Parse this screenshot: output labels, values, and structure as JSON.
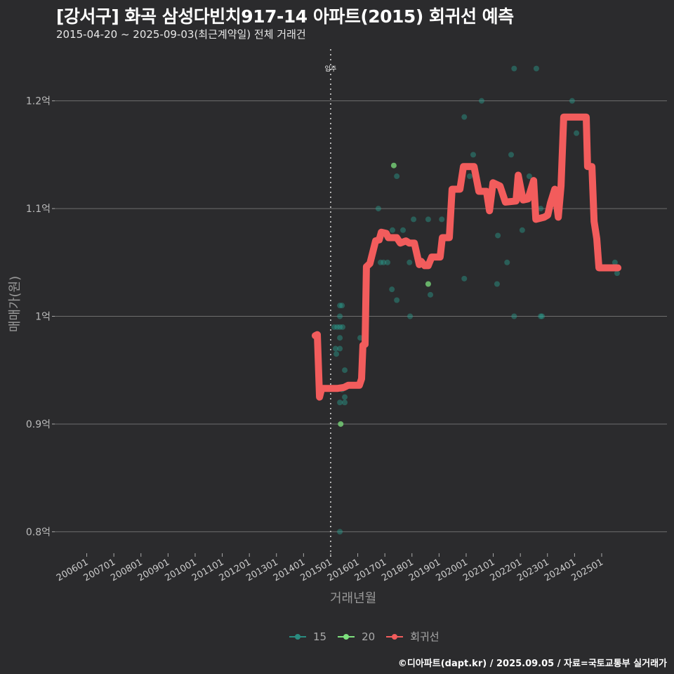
{
  "title": "[강서구] 화곡 삼성다빈치917-14 아파트(2015) 회귀선 예측",
  "subtitle": "2015-04-20 ~ 2025-09-03(최근계약일) 전체 거래건",
  "caption": "©디아파트(dapt.kr) / 2025.09.05 / 자료=국토교통부 실거래가",
  "chart_data": {
    "type": "scatter",
    "xlabel": "거래년월",
    "ylabel": "매매가(원)",
    "xlim": [
      2004.82,
      2027.41
    ],
    "ylim": [
      0.782,
      1.248
    ],
    "grid": "horizontal",
    "legend_position": "bottom",
    "x_ticks": [
      {
        "value": 2006,
        "label": "200601"
      },
      {
        "value": 2007,
        "label": "200701"
      },
      {
        "value": 2008,
        "label": "200801"
      },
      {
        "value": 2009,
        "label": "200901"
      },
      {
        "value": 2010,
        "label": "201001"
      },
      {
        "value": 2011,
        "label": "201101"
      },
      {
        "value": 2012,
        "label": "201201"
      },
      {
        "value": 2013,
        "label": "201301"
      },
      {
        "value": 2014,
        "label": "201401"
      },
      {
        "value": 2015,
        "label": "201501"
      },
      {
        "value": 2016,
        "label": "201601"
      },
      {
        "value": 2017,
        "label": "201701"
      },
      {
        "value": 2018,
        "label": "201801"
      },
      {
        "value": 2019,
        "label": "201901"
      },
      {
        "value": 2020,
        "label": "202001"
      },
      {
        "value": 2021,
        "label": "202101"
      },
      {
        "value": 2022,
        "label": "202201"
      },
      {
        "value": 2023,
        "label": "202301"
      },
      {
        "value": 2024,
        "label": "202401"
      },
      {
        "value": 2025,
        "label": "202501"
      }
    ],
    "y_ticks": [
      {
        "value": 1.2,
        "label": "1.2억"
      },
      {
        "value": 1.1,
        "label": "1.1억"
      },
      {
        "value": 1.0,
        "label": "1억"
      },
      {
        "value": 0.9,
        "label": "0.9억"
      },
      {
        "value": 0.8,
        "label": "0.8억"
      }
    ],
    "annotation": {
      "x": 2015.0,
      "label": "입주"
    },
    "legend": [
      {
        "name": "15",
        "color": "#2a8c80"
      },
      {
        "name": "20",
        "color": "#7de07d"
      },
      {
        "name": "회귀선",
        "color": "#f25c5c"
      }
    ],
    "series": [
      {
        "name": "15",
        "color": "#2a9d8f",
        "points": [
          [
            2015.34,
            1.01
          ],
          [
            2015.42,
            1.01
          ],
          [
            2015.34,
            1.0
          ],
          [
            2015.13,
            0.99
          ],
          [
            2015.24,
            0.99
          ],
          [
            2015.34,
            0.99
          ],
          [
            2015.44,
            0.99
          ],
          [
            2015.34,
            0.98
          ],
          [
            2015.18,
            0.97
          ],
          [
            2015.34,
            0.97
          ],
          [
            2015.21,
            0.965
          ],
          [
            2015.52,
            0.95
          ],
          [
            2015.42,
            0.932
          ],
          [
            2015.52,
            0.925
          ],
          [
            2015.34,
            0.92
          ],
          [
            2015.52,
            0.92
          ],
          [
            2015.34,
            0.8
          ],
          [
            2016.09,
            0.98
          ],
          [
            2016.76,
            1.1
          ],
          [
            2017.44,
            1.13
          ],
          [
            2017.28,
            1.08
          ],
          [
            2016.84,
            1.05
          ],
          [
            2016.95,
            1.05
          ],
          [
            2017.1,
            1.05
          ],
          [
            2017.44,
            1.015
          ],
          [
            2017.26,
            1.025
          ],
          [
            2017.67,
            1.08
          ],
          [
            2018.06,
            1.09
          ],
          [
            2018.6,
            1.09
          ],
          [
            2017.93,
            1.0
          ],
          [
            2018.68,
            1.02
          ],
          [
            2019.1,
            1.09
          ],
          [
            2019.93,
            1.035
          ],
          [
            2019.93,
            1.185
          ],
          [
            2020.57,
            1.2
          ],
          [
            2020.26,
            1.15
          ],
          [
            2020.13,
            1.13
          ],
          [
            2021.77,
            1.23
          ],
          [
            2022.59,
            1.23
          ],
          [
            2023.91,
            1.2
          ],
          [
            2024.07,
            1.17
          ],
          [
            2021.66,
            1.15
          ],
          [
            2022.33,
            1.13
          ],
          [
            2021.17,
            1.075
          ],
          [
            2022.07,
            1.08
          ],
          [
            2021.14,
            1.03
          ],
          [
            2021.51,
            1.05
          ],
          [
            2021.77,
            1.0
          ],
          [
            2022.75,
            1.0
          ],
          [
            2022.8,
            1.0
          ],
          [
            2025.49,
            1.05
          ],
          [
            2025.57,
            1.04
          ],
          [
            2022.75,
            1.1
          ],
          [
            2017.91,
            1.05
          ]
        ]
      },
      {
        "name": "20",
        "color": "#7de07d",
        "points": [
          [
            2015.37,
            0.9
          ],
          [
            2017.33,
            1.14
          ],
          [
            2018.6,
            1.03
          ]
        ]
      },
      {
        "name": "회귀선",
        "color": "#f25c5c",
        "type": "line",
        "points": [
          [
            2014.43,
            0.982
          ],
          [
            2014.51,
            0.983
          ],
          [
            2014.59,
            0.925
          ],
          [
            2014.67,
            0.933
          ],
          [
            2015.24,
            0.933
          ],
          [
            2015.49,
            0.934
          ],
          [
            2015.65,
            0.936
          ],
          [
            2016.06,
            0.936
          ],
          [
            2016.14,
            0.942
          ],
          [
            2016.19,
            0.973
          ],
          [
            2016.27,
            0.974
          ],
          [
            2016.32,
            1.046
          ],
          [
            2016.45,
            1.049
          ],
          [
            2016.66,
            1.07
          ],
          [
            2016.79,
            1.071
          ],
          [
            2016.87,
            1.078
          ],
          [
            2017.05,
            1.077
          ],
          [
            2017.13,
            1.073
          ],
          [
            2017.44,
            1.073
          ],
          [
            2017.57,
            1.068
          ],
          [
            2017.78,
            1.07
          ],
          [
            2017.9,
            1.068
          ],
          [
            2018.09,
            1.068
          ],
          [
            2018.27,
            1.048
          ],
          [
            2018.34,
            1.051
          ],
          [
            2018.47,
            1.047
          ],
          [
            2018.6,
            1.047
          ],
          [
            2018.73,
            1.055
          ],
          [
            2019.04,
            1.055
          ],
          [
            2019.12,
            1.073
          ],
          [
            2019.38,
            1.073
          ],
          [
            2019.48,
            1.118
          ],
          [
            2019.77,
            1.118
          ],
          [
            2019.9,
            1.139
          ],
          [
            2020.29,
            1.139
          ],
          [
            2020.47,
            1.116
          ],
          [
            2020.75,
            1.116
          ],
          [
            2020.86,
            1.098
          ],
          [
            2020.99,
            1.124
          ],
          [
            2021.25,
            1.121
          ],
          [
            2021.45,
            1.106
          ],
          [
            2021.84,
            1.107
          ],
          [
            2021.92,
            1.131
          ],
          [
            2022.1,
            1.108
          ],
          [
            2022.28,
            1.109
          ],
          [
            2022.49,
            1.126
          ],
          [
            2022.57,
            1.09
          ],
          [
            2022.88,
            1.092
          ],
          [
            2023.01,
            1.094
          ],
          [
            2023.11,
            1.105
          ],
          [
            2023.27,
            1.118
          ],
          [
            2023.4,
            1.092
          ],
          [
            2023.5,
            1.121
          ],
          [
            2023.6,
            1.185
          ],
          [
            2024.43,
            1.185
          ],
          [
            2024.48,
            1.139
          ],
          [
            2024.64,
            1.139
          ],
          [
            2024.72,
            1.088
          ],
          [
            2024.82,
            1.072
          ],
          [
            2024.9,
            1.045
          ],
          [
            2025.6,
            1.045
          ]
        ]
      }
    ]
  }
}
